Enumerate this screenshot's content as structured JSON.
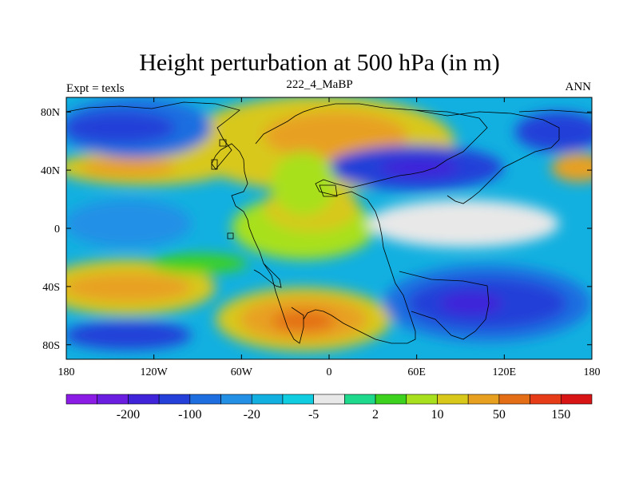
{
  "chart_data": {
    "type": "heatmap",
    "title": "Height perturbation at 500 hPa (in m)",
    "left_label": "Expt = texls",
    "center_label": "222_4_MaBP",
    "right_label": "ANN",
    "x_ticks": [
      "180",
      "120W",
      "60W",
      "0",
      "60E",
      "120E",
      "180"
    ],
    "x_tick_values": [
      -180,
      -120,
      -60,
      0,
      60,
      120,
      180
    ],
    "y_ticks": [
      "80N",
      "40N",
      "0",
      "40S",
      "80S"
    ],
    "y_tick_values": [
      80,
      40,
      0,
      -40,
      -80
    ],
    "xlim": [
      -180,
      180
    ],
    "ylim": [
      -90,
      90
    ],
    "colorbar": {
      "colors": [
        "#8a1ce6",
        "#6a1fe0",
        "#3f24d9",
        "#2440d8",
        "#1e6ee0",
        "#2390e6",
        "#12b0e0",
        "#10cde0",
        "#e8e8e8",
        "#1ed98c",
        "#3cd21e",
        "#a8e01e",
        "#d8c81a",
        "#e8a020",
        "#e46e16",
        "#e63c18",
        "#d81414"
      ],
      "labels": [
        {
          "text": "-200",
          "index": 1
        },
        {
          "text": "-100",
          "index": 3
        },
        {
          "text": "-20",
          "index": 5
        },
        {
          "text": "-5",
          "index": 7
        },
        {
          "text": "2",
          "index": 9
        },
        {
          "text": "10",
          "index": 11
        },
        {
          "text": "50",
          "index": 13
        },
        {
          "text": "150",
          "index": 15
        }
      ]
    },
    "field_regions": [
      {
        "name": "n-mid-pacific-blue-band",
        "value": -20,
        "color": "#2390e6",
        "cx": -150,
        "cy": 60,
        "rx": 50,
        "ry": 30
      },
      {
        "name": "n-pacific-low",
        "value": -100,
        "color": "#2440d8",
        "cx": -150,
        "cy": 70,
        "rx": 30,
        "ry": 13
      },
      {
        "name": "n-pacific-low-core",
        "value": -200,
        "color": "#3f24d9",
        "cx": -158,
        "cy": 72,
        "rx": 14,
        "ry": 5
      },
      {
        "name": "n-atlantic-high",
        "value": 50,
        "color": "#e8a020",
        "cx": -5,
        "cy": 65,
        "rx": 40,
        "ry": 14
      },
      {
        "name": "n-atlantic-high-outer",
        "value": 10,
        "color": "#d8c81a",
        "cx": 20,
        "cy": 65,
        "rx": 50,
        "ry": 20
      },
      {
        "name": "asia-low",
        "value": -100,
        "color": "#2440d8",
        "cx": 80,
        "cy": 42,
        "rx": 45,
        "ry": 15
      },
      {
        "name": "asia-low-core",
        "value": -200,
        "color": "#3f24d9",
        "cx": 78,
        "cy": 42,
        "rx": 25,
        "ry": 7
      },
      {
        "name": "n-pacific-west-low",
        "value": -100,
        "color": "#2440d8",
        "cx": 160,
        "cy": 68,
        "rx": 25,
        "ry": 12
      },
      {
        "name": "eurasia-mid-high",
        "value": 10,
        "color": "#d8c81a",
        "cx": -120,
        "cy": 40,
        "rx": 40,
        "ry": 10
      },
      {
        "name": "eurasia-mid-high-core",
        "value": 50,
        "color": "#e8a020",
        "cx": -140,
        "cy": 40,
        "rx": 25,
        "ry": 6
      },
      {
        "name": "n-hemisphere-east-high",
        "value": 50,
        "color": "#e8a020",
        "cx": 170,
        "cy": 40,
        "rx": 15,
        "ry": 8
      },
      {
        "name": "equatorial-pacific-low",
        "value": -20,
        "color": "#2390e6",
        "cx": -150,
        "cy": 5,
        "rx": 40,
        "ry": 20
      },
      {
        "name": "equatorial-neutral",
        "value": 2,
        "color": "#e8e8e8",
        "cx": 100,
        "cy": 0,
        "rx": 50,
        "ry": 12
      },
      {
        "name": "s-pacific-high",
        "value": 50,
        "color": "#e8a020",
        "cx": -140,
        "cy": -40,
        "rx": 35,
        "ry": 10
      },
      {
        "name": "s-atlantic-high",
        "value": 150,
        "color": "#e46e16",
        "cx": -10,
        "cy": -63,
        "rx": 25,
        "ry": 10
      },
      {
        "name": "s-atlantic-high-outer",
        "value": 50,
        "color": "#e8a020",
        "cx": -10,
        "cy": -63,
        "rx": 45,
        "ry": 18
      },
      {
        "name": "s-indian-low",
        "value": -100,
        "color": "#2440d8",
        "cx": 120,
        "cy": -55,
        "rx": 45,
        "ry": 20
      },
      {
        "name": "s-indian-low-core",
        "value": -200,
        "color": "#3f24d9",
        "cx": 110,
        "cy": -55,
        "rx": 20,
        "ry": 8
      },
      {
        "name": "s-pacific-low",
        "value": -100,
        "color": "#2440d8",
        "cx": -150,
        "cy": -78,
        "rx": 30,
        "ry": 8
      }
    ]
  }
}
